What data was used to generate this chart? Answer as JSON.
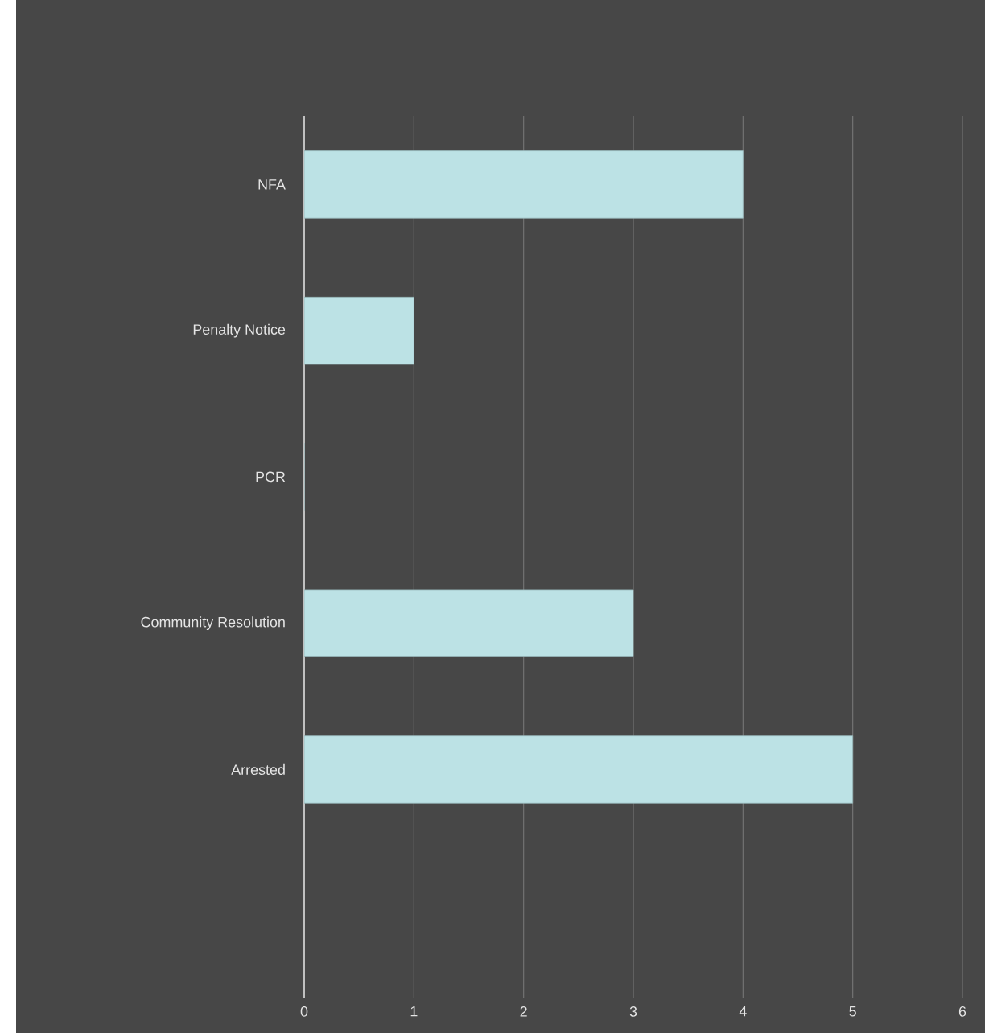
{
  "chart_data": {
    "type": "bar",
    "orientation": "horizontal",
    "categories": [
      "NFA",
      "Penalty Notice",
      "PCR",
      "Community Resolution",
      "Arrested"
    ],
    "values": [
      4,
      1,
      0,
      3,
      5
    ],
    "color": "#bce2e5",
    "xlim": [
      0,
      6
    ],
    "xticks": [
      0,
      1,
      2,
      3,
      4,
      5,
      6
    ],
    "grid": "x"
  }
}
